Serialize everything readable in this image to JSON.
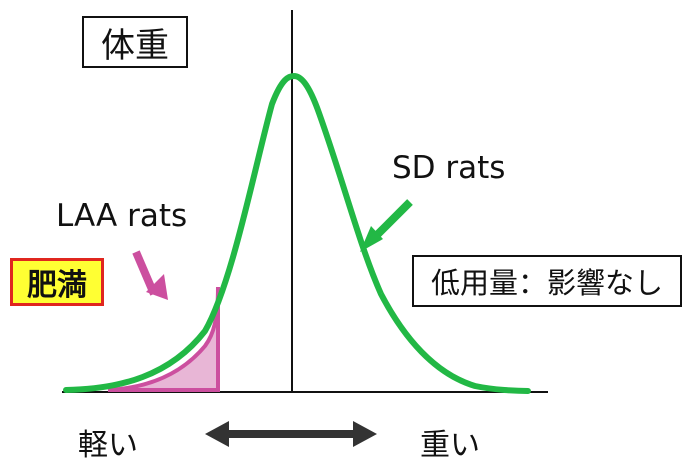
{
  "labels": {
    "title": "体重",
    "obesity": "肥満",
    "laa": "LAA rats",
    "sd": "SD rats",
    "dose": "低用量：影響なし",
    "light": "軽い",
    "heavy": "重い"
  },
  "colors": {
    "curve": "#22b845",
    "laa_area": "#e8b6d6",
    "laa_arrow": "#cc4f9f",
    "sd_arrow": "#22b845",
    "obesity_bg": "#ffff33",
    "obesity_border": "#e0261f",
    "axis": "#111111"
  }
}
